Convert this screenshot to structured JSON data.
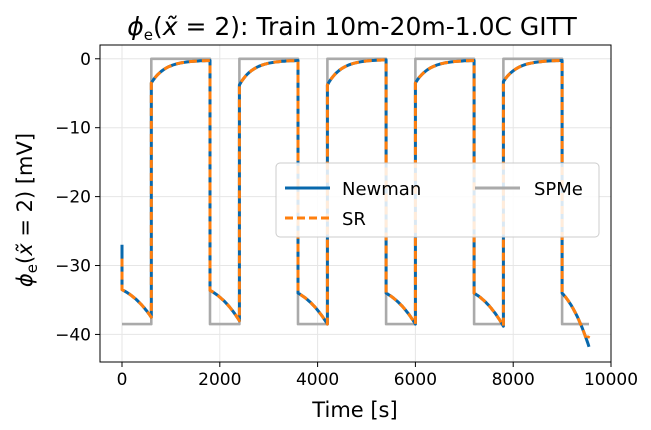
{
  "chart_data": {
    "type": "line",
    "title_main": "Train 10m-20m-1.0C GITT",
    "xlabel": "Time [s]",
    "ylabel_unit": "[mV]",
    "xlim": [
      -450,
      10000
    ],
    "ylim": [
      -44,
      2
    ],
    "xticks": [
      0,
      2000,
      4000,
      6000,
      8000,
      10000
    ],
    "yticks": [
      0,
      -10,
      -20,
      -30,
      -40
    ],
    "grid": true,
    "legend_position": "center-right",
    "series": [
      {
        "name": "Newman",
        "color": "#0868ac",
        "style": "solid"
      },
      {
        "name": "SR",
        "color": "#ff7f0e",
        "style": "dashed"
      },
      {
        "name": "SPMe",
        "color": "#aaaaaa",
        "style": "solid"
      }
    ],
    "cycle_period_s": 1800,
    "discharge_duration_s": 600,
    "cycle_starts_s": [
      0,
      1800,
      3600,
      5400,
      7200,
      9000
    ],
    "end_time_s": 9550,
    "newman_discharge_start_mV": [
      -33.5,
      -33.6,
      -34.0,
      -34.0,
      -34.0,
      -34.0
    ],
    "newman_discharge_end_mV": [
      -37.5,
      -38.0,
      -38.5,
      -38.5,
      -38.8,
      -41.8
    ],
    "newman_rest_start_mV": [
      -3.5,
      -3.8,
      -3.8,
      -3.5,
      -3.3
    ],
    "newman_rest_end_mV": [
      -0.2,
      -0.2,
      -0.1,
      -0.2,
      -0.2
    ],
    "newman_initial_mV": -27,
    "sr_initial_mV": -29,
    "sr_final_mV": -40.2,
    "spme_discharge_mV": -38.5,
    "spme_rest_mV": 0
  }
}
